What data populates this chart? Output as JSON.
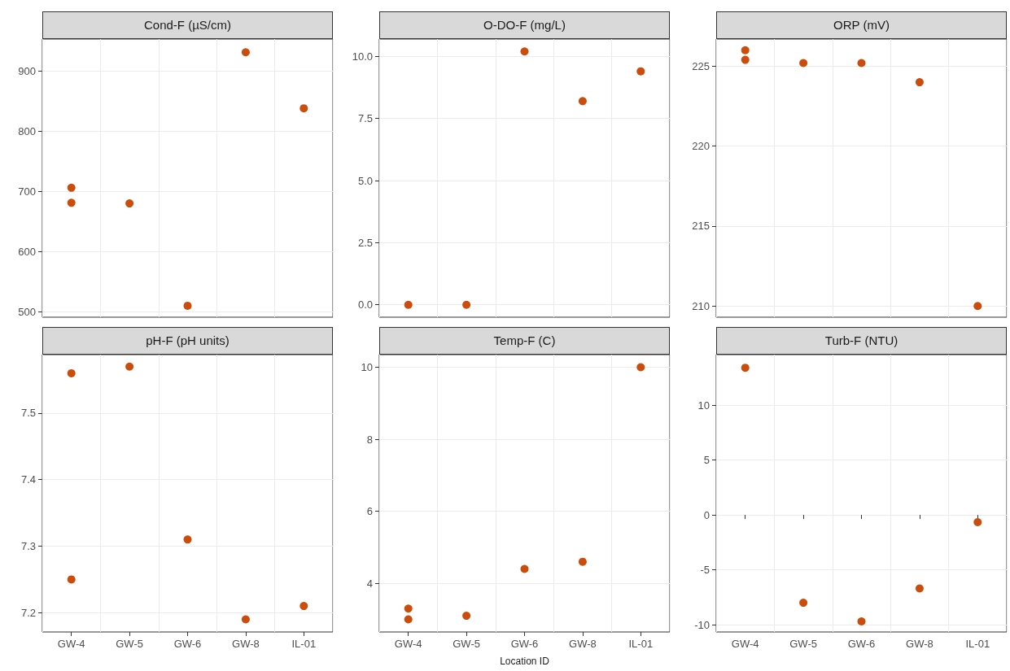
{
  "chart_data": [
    {
      "type": "scatter",
      "title": "Cond-F (µS/cm)",
      "categories": [
        "GW-4",
        "GW-5",
        "GW-6",
        "GW-8",
        "IL-01"
      ],
      "marker": "circle",
      "grid": true,
      "tick_labels": "y",
      "ylim": [
        491,
        953
      ],
      "yticks": [
        500,
        600,
        700,
        800,
        900
      ],
      "series": [
        {
          "color": "#cc4c0c",
          "x": [
            "GW-4",
            "GW-4",
            "GW-5",
            "GW-6",
            "GW-8",
            "IL-01"
          ],
          "values": [
            706,
            681,
            680,
            510,
            931,
            838
          ]
        }
      ]
    },
    {
      "type": "scatter",
      "title": "O-DO-F (mg/L)",
      "categories": [
        "GW-4",
        "GW-5",
        "GW-6",
        "GW-8",
        "IL-01"
      ],
      "marker": "circle",
      "grid": true,
      "tick_labels": "y",
      "ylim": [
        -0.5,
        10.7
      ],
      "yticks": [
        {
          "value": 0,
          "label": "0.0"
        },
        {
          "value": 2.5,
          "label": "2.5"
        },
        {
          "value": 5,
          "label": "5.0"
        },
        {
          "value": 7.5,
          "label": "7.5"
        },
        {
          "value": 10,
          "label": "10.0"
        }
      ],
      "series": [
        {
          "color": "#cc4c0c",
          "x": [
            "GW-4",
            "GW-5",
            "GW-6",
            "GW-8",
            "IL-01"
          ],
          "values": [
            0,
            0,
            10.2,
            8.2,
            9.4
          ]
        }
      ]
    },
    {
      "type": "scatter",
      "title": "ORP (mV)",
      "categories": [
        "GW-4",
        "GW-5",
        "GW-6",
        "GW-8",
        "IL-01"
      ],
      "marker": "circle",
      "grid": true,
      "tick_labels": "y",
      "ylim": [
        209.3,
        226.7
      ],
      "yticks": [
        210,
        215,
        220,
        225
      ],
      "series": [
        {
          "color": "#cc4c0c",
          "x": [
            "GW-4",
            "GW-4",
            "GW-5",
            "GW-6",
            "GW-8",
            "IL-01"
          ],
          "values": [
            226,
            225.4,
            225.2,
            225.2,
            224,
            210
          ]
        }
      ]
    },
    {
      "type": "scatter",
      "title": "pH-F (pH units)",
      "categories": [
        "GW-4",
        "GW-5",
        "GW-6",
        "GW-8",
        "IL-01"
      ],
      "marker": "circle",
      "grid": true,
      "ylim": [
        7.171,
        7.588
      ],
      "yticks": [
        7.2,
        7.3,
        7.4,
        7.5
      ],
      "series": [
        {
          "color": "#cc4c0c",
          "x": [
            "GW-4",
            "GW-4",
            "GW-5",
            "GW-6",
            "GW-8",
            "IL-01"
          ],
          "values": [
            7.56,
            7.25,
            7.57,
            7.31,
            7.19,
            7.21
          ]
        }
      ]
    },
    {
      "type": "scatter",
      "title": "Temp-F (C)",
      "xlabel": "Location ID",
      "categories": [
        "GW-4",
        "GW-5",
        "GW-6",
        "GW-8",
        "IL-01"
      ],
      "marker": "circle",
      "grid": true,
      "ylim": [
        2.65,
        10.35
      ],
      "yticks": [
        4,
        6,
        8,
        10
      ],
      "series": [
        {
          "color": "#cc4c0c",
          "x": [
            "GW-4",
            "GW-4",
            "GW-5",
            "GW-6",
            "GW-8",
            "IL-01"
          ],
          "values": [
            3.3,
            3.0,
            3.1,
            4.4,
            4.6,
            10
          ]
        }
      ]
    },
    {
      "type": "scatter",
      "title": "Turb-F (NTU)",
      "categories": [
        "GW-4",
        "GW-5",
        "GW-6",
        "GW-8",
        "IL-01"
      ],
      "marker": "circle",
      "grid": true,
      "ylim": [
        -10.66,
        14.6
      ],
      "yticks": [
        -10,
        -5,
        0,
        5,
        10
      ],
      "series": [
        {
          "color": "#cc4c0c",
          "x": [
            "GW-4",
            "GW-5",
            "GW-6",
            "GW-8",
            "IL-01"
          ],
          "values": [
            13.4,
            -8,
            -9.7,
            -6.7,
            -0.66
          ]
        }
      ]
    }
  ]
}
